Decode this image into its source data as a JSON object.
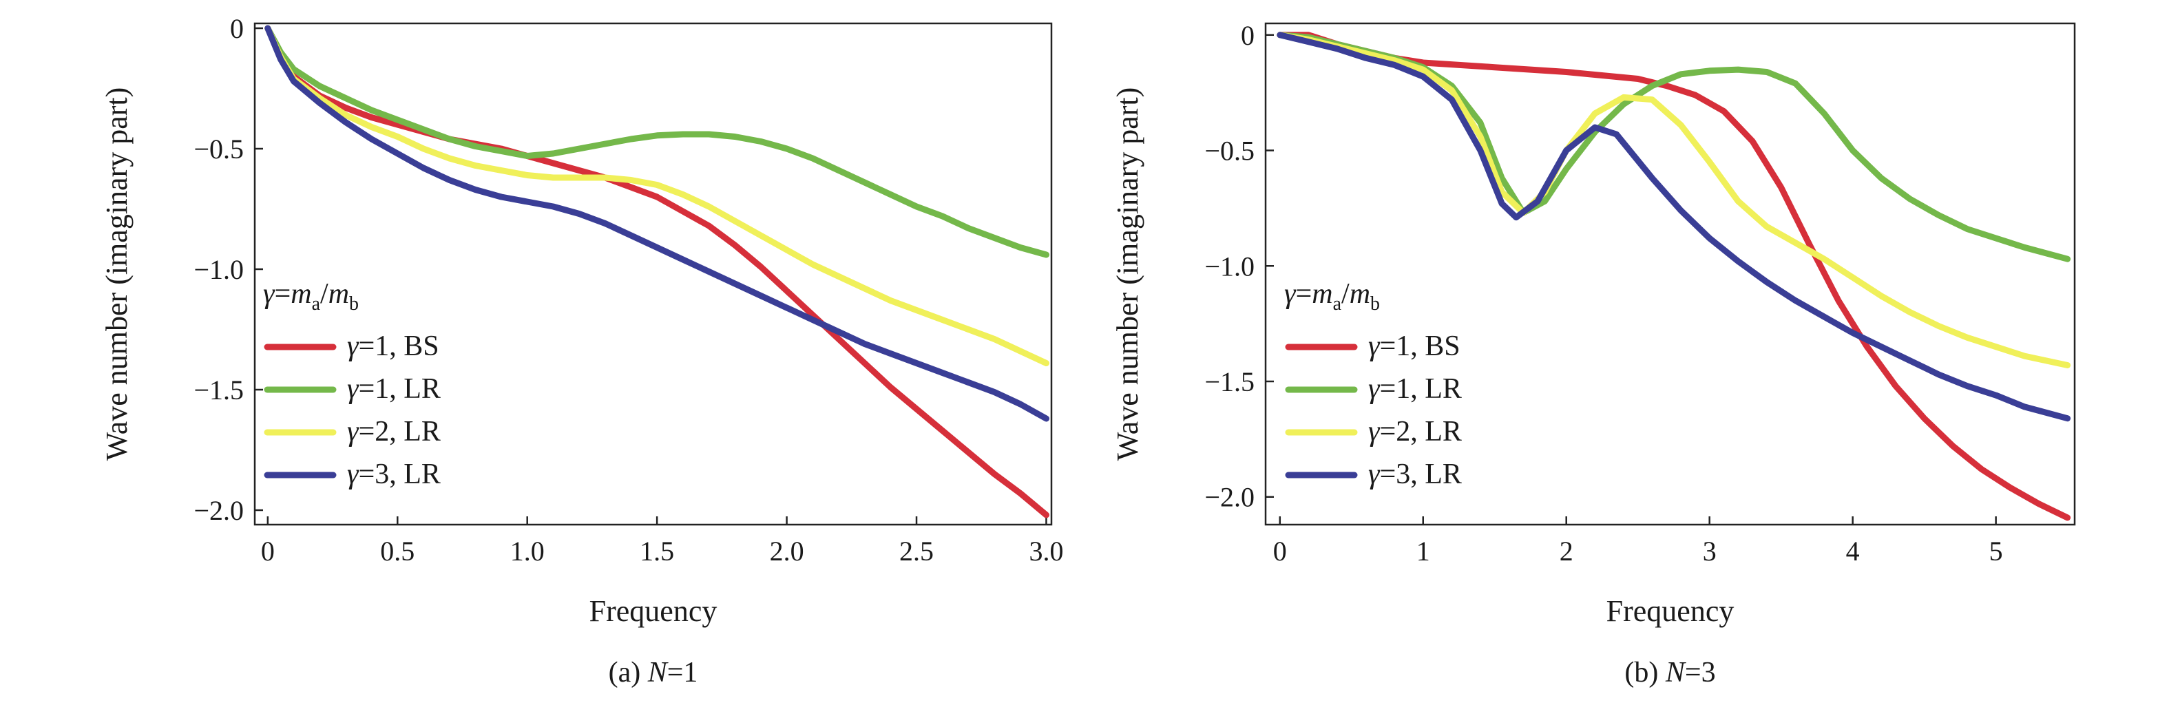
{
  "chart_data": [
    {
      "type": "line",
      "title": "",
      "caption": {
        "prefix": "(a) ",
        "var": "N",
        "rest": "=1"
      },
      "xlabel": "Frequency",
      "ylabel": "Wave number (imaginary part)",
      "xlim": [
        -0.05,
        3.02
      ],
      "ylim": [
        -2.06,
        0.02
      ],
      "xticks": [
        0,
        0.5,
        1.0,
        1.5,
        2.0,
        2.5,
        3.0
      ],
      "xtick_labels": [
        "0",
        "0.5",
        "1.0",
        "1.5",
        "2.0",
        "2.5",
        "3.0"
      ],
      "yticks": [
        0,
        -0.5,
        -1.0,
        -1.5,
        -2.0
      ],
      "ytick_labels": [
        "0",
        "−0.5",
        "−1.0",
        "−1.5",
        "−2.0"
      ],
      "grid": false,
      "legend": {
        "placement": "center-left",
        "title": {
          "g": "γ",
          "eq": "=",
          "m1": "m",
          "s1": "a",
          "slash": "/",
          "m2": "m",
          "s2": "b"
        },
        "entries": [
          {
            "g": "γ",
            "rest": "=1, BS"
          },
          {
            "g": "γ",
            "rest": "=1, LR"
          },
          {
            "g": "γ",
            "rest": "=2, LR"
          },
          {
            "g": "γ",
            "rest": "=3, LR"
          }
        ]
      },
      "series": [
        {
          "color": "#d62f3a",
          "points": [
            [
              0,
              0
            ],
            [
              0.05,
              -0.12
            ],
            [
              0.1,
              -0.2
            ],
            [
              0.2,
              -0.28
            ],
            [
              0.3,
              -0.33
            ],
            [
              0.4,
              -0.37
            ],
            [
              0.5,
              -0.4
            ],
            [
              0.6,
              -0.43
            ],
            [
              0.7,
              -0.46
            ],
            [
              0.8,
              -0.48
            ],
            [
              0.9,
              -0.5
            ],
            [
              1.0,
              -0.53
            ],
            [
              1.1,
              -0.56
            ],
            [
              1.2,
              -0.59
            ],
            [
              1.3,
              -0.62
            ],
            [
              1.4,
              -0.66
            ],
            [
              1.5,
              -0.7
            ],
            [
              1.6,
              -0.76
            ],
            [
              1.7,
              -0.82
            ],
            [
              1.8,
              -0.9
            ],
            [
              1.9,
              -0.99
            ],
            [
              2.0,
              -1.09
            ],
            [
              2.1,
              -1.19
            ],
            [
              2.2,
              -1.29
            ],
            [
              2.3,
              -1.39
            ],
            [
              2.4,
              -1.49
            ],
            [
              2.5,
              -1.58
            ],
            [
              2.6,
              -1.67
            ],
            [
              2.7,
              -1.76
            ],
            [
              2.8,
              -1.85
            ],
            [
              2.9,
              -1.93
            ],
            [
              3.0,
              -2.02
            ]
          ]
        },
        {
          "color": "#74b84a",
          "points": [
            [
              0,
              0
            ],
            [
              0.05,
              -0.1
            ],
            [
              0.1,
              -0.17
            ],
            [
              0.2,
              -0.24
            ],
            [
              0.3,
              -0.29
            ],
            [
              0.4,
              -0.34
            ],
            [
              0.5,
              -0.38
            ],
            [
              0.6,
              -0.42
            ],
            [
              0.7,
              -0.46
            ],
            [
              0.8,
              -0.49
            ],
            [
              0.9,
              -0.51
            ],
            [
              1.0,
              -0.53
            ],
            [
              1.1,
              -0.52
            ],
            [
              1.2,
              -0.5
            ],
            [
              1.3,
              -0.48
            ],
            [
              1.4,
              -0.46
            ],
            [
              1.5,
              -0.445
            ],
            [
              1.6,
              -0.44
            ],
            [
              1.7,
              -0.44
            ],
            [
              1.8,
              -0.45
            ],
            [
              1.9,
              -0.47
            ],
            [
              2.0,
              -0.5
            ],
            [
              2.1,
              -0.54
            ],
            [
              2.2,
              -0.59
            ],
            [
              2.3,
              -0.64
            ],
            [
              2.4,
              -0.69
            ],
            [
              2.5,
              -0.74
            ],
            [
              2.6,
              -0.78
            ],
            [
              2.7,
              -0.83
            ],
            [
              2.8,
              -0.87
            ],
            [
              2.9,
              -0.91
            ],
            [
              3.0,
              -0.94
            ]
          ]
        },
        {
          "color": "#f0f05a",
          "points": [
            [
              0,
              0
            ],
            [
              0.05,
              -0.12
            ],
            [
              0.1,
              -0.21
            ],
            [
              0.2,
              -0.29
            ],
            [
              0.3,
              -0.36
            ],
            [
              0.4,
              -0.41
            ],
            [
              0.5,
              -0.45
            ],
            [
              0.6,
              -0.5
            ],
            [
              0.7,
              -0.54
            ],
            [
              0.8,
              -0.57
            ],
            [
              0.9,
              -0.59
            ],
            [
              1.0,
              -0.61
            ],
            [
              1.1,
              -0.62
            ],
            [
              1.2,
              -0.62
            ],
            [
              1.3,
              -0.62
            ],
            [
              1.4,
              -0.63
            ],
            [
              1.5,
              -0.65
            ],
            [
              1.6,
              -0.69
            ],
            [
              1.7,
              -0.74
            ],
            [
              1.8,
              -0.8
            ],
            [
              1.9,
              -0.86
            ],
            [
              2.0,
              -0.92
            ],
            [
              2.1,
              -0.98
            ],
            [
              2.2,
              -1.03
            ],
            [
              2.3,
              -1.08
            ],
            [
              2.4,
              -1.13
            ],
            [
              2.5,
              -1.17
            ],
            [
              2.6,
              -1.21
            ],
            [
              2.7,
              -1.25
            ],
            [
              2.8,
              -1.29
            ],
            [
              2.9,
              -1.34
            ],
            [
              3.0,
              -1.39
            ]
          ]
        },
        {
          "color": "#3a3e96",
          "points": [
            [
              0,
              0
            ],
            [
              0.05,
              -0.13
            ],
            [
              0.1,
              -0.22
            ],
            [
              0.2,
              -0.31
            ],
            [
              0.3,
              -0.39
            ],
            [
              0.4,
              -0.46
            ],
            [
              0.5,
              -0.52
            ],
            [
              0.6,
              -0.58
            ],
            [
              0.7,
              -0.63
            ],
            [
              0.8,
              -0.67
            ],
            [
              0.9,
              -0.7
            ],
            [
              1.0,
              -0.72
            ],
            [
              1.1,
              -0.74
            ],
            [
              1.2,
              -0.77
            ],
            [
              1.3,
              -0.81
            ],
            [
              1.4,
              -0.86
            ],
            [
              1.5,
              -0.91
            ],
            [
              1.6,
              -0.96
            ],
            [
              1.7,
              -1.01
            ],
            [
              1.8,
              -1.06
            ],
            [
              1.9,
              -1.11
            ],
            [
              2.0,
              -1.16
            ],
            [
              2.1,
              -1.21
            ],
            [
              2.2,
              -1.26
            ],
            [
              2.3,
              -1.31
            ],
            [
              2.4,
              -1.35
            ],
            [
              2.5,
              -1.39
            ],
            [
              2.6,
              -1.43
            ],
            [
              2.7,
              -1.47
            ],
            [
              2.8,
              -1.51
            ],
            [
              2.9,
              -1.56
            ],
            [
              3.0,
              -1.62
            ]
          ]
        }
      ]
    },
    {
      "type": "line",
      "title": "",
      "caption": {
        "prefix": "(b) ",
        "var": "N",
        "rest": "=3"
      },
      "xlabel": "Frequency",
      "ylabel": "Wave number (imaginary part)",
      "xlim": [
        -0.1,
        5.55
      ],
      "ylim": [
        -2.12,
        0.05
      ],
      "xticks": [
        0,
        1,
        2,
        3,
        4,
        5
      ],
      "xtick_labels": [
        "0",
        "1",
        "2",
        "3",
        "4",
        "5"
      ],
      "yticks": [
        0,
        -0.5,
        -1.0,
        -1.5,
        -2.0
      ],
      "ytick_labels": [
        "0",
        "−0.5",
        "−1.0",
        "−1.5",
        "−2.0"
      ],
      "grid": false,
      "legend": {
        "placement": "center-left",
        "title": {
          "g": "γ",
          "eq": "=",
          "m1": "m",
          "s1": "a",
          "slash": "/",
          "m2": "m",
          "s2": "b"
        },
        "entries": [
          {
            "g": "γ",
            "rest": "=1, BS"
          },
          {
            "g": "γ",
            "rest": "=1, LR"
          },
          {
            "g": "γ",
            "rest": "=2, LR"
          },
          {
            "g": "γ",
            "rest": "=3, LR"
          }
        ]
      },
      "series": [
        {
          "color": "#d62f3a",
          "points": [
            [
              0,
              0
            ],
            [
              0.2,
              0
            ],
            [
              0.4,
              -0.04
            ],
            [
              0.6,
              -0.07
            ],
            [
              0.8,
              -0.1
            ],
            [
              1.0,
              -0.12
            ],
            [
              1.5,
              -0.14
            ],
            [
              2.0,
              -0.16
            ],
            [
              2.5,
              -0.19
            ],
            [
              2.7,
              -0.22
            ],
            [
              2.9,
              -0.26
            ],
            [
              3.1,
              -0.33
            ],
            [
              3.3,
              -0.46
            ],
            [
              3.5,
              -0.66
            ],
            [
              3.7,
              -0.91
            ],
            [
              3.9,
              -1.15
            ],
            [
              4.1,
              -1.35
            ],
            [
              4.3,
              -1.52
            ],
            [
              4.5,
              -1.66
            ],
            [
              4.7,
              -1.78
            ],
            [
              4.9,
              -1.88
            ],
            [
              5.1,
              -1.96
            ],
            [
              5.3,
              -2.03
            ],
            [
              5.5,
              -2.09
            ]
          ]
        },
        {
          "color": "#74b84a",
          "points": [
            [
              0,
              0
            ],
            [
              0.2,
              -0.01
            ],
            [
              0.4,
              -0.04
            ],
            [
              0.6,
              -0.07
            ],
            [
              0.8,
              -0.1
            ],
            [
              1.0,
              -0.14
            ],
            [
              1.2,
              -0.22
            ],
            [
              1.4,
              -0.38
            ],
            [
              1.55,
              -0.62
            ],
            [
              1.7,
              -0.77
            ],
            [
              1.85,
              -0.72
            ],
            [
              2.0,
              -0.58
            ],
            [
              2.2,
              -0.42
            ],
            [
              2.4,
              -0.3
            ],
            [
              2.6,
              -0.22
            ],
            [
              2.8,
              -0.17
            ],
            [
              3.0,
              -0.155
            ],
            [
              3.2,
              -0.15
            ],
            [
              3.4,
              -0.16
            ],
            [
              3.6,
              -0.21
            ],
            [
              3.8,
              -0.34
            ],
            [
              4.0,
              -0.5
            ],
            [
              4.2,
              -0.62
            ],
            [
              4.4,
              -0.71
            ],
            [
              4.6,
              -0.78
            ],
            [
              4.8,
              -0.84
            ],
            [
              5.0,
              -0.88
            ],
            [
              5.2,
              -0.92
            ],
            [
              5.5,
              -0.97
            ]
          ]
        },
        {
          "color": "#f0f05a",
          "points": [
            [
              0,
              0
            ],
            [
              0.2,
              -0.02
            ],
            [
              0.4,
              -0.05
            ],
            [
              0.6,
              -0.08
            ],
            [
              0.8,
              -0.11
            ],
            [
              1.0,
              -0.15
            ],
            [
              1.2,
              -0.24
            ],
            [
              1.4,
              -0.44
            ],
            [
              1.55,
              -0.68
            ],
            [
              1.7,
              -0.77
            ],
            [
              1.85,
              -0.68
            ],
            [
              2.0,
              -0.5
            ],
            [
              2.2,
              -0.34
            ],
            [
              2.4,
              -0.27
            ],
            [
              2.6,
              -0.28
            ],
            [
              2.8,
              -0.39
            ],
            [
              3.0,
              -0.55
            ],
            [
              3.2,
              -0.72
            ],
            [
              3.4,
              -0.83
            ],
            [
              3.6,
              -0.9
            ],
            [
              3.8,
              -0.97
            ],
            [
              4.0,
              -1.05
            ],
            [
              4.2,
              -1.13
            ],
            [
              4.4,
              -1.2
            ],
            [
              4.6,
              -1.26
            ],
            [
              4.8,
              -1.31
            ],
            [
              5.0,
              -1.35
            ],
            [
              5.2,
              -1.39
            ],
            [
              5.5,
              -1.43
            ]
          ]
        },
        {
          "color": "#3a3e96",
          "points": [
            [
              0,
              0
            ],
            [
              0.2,
              -0.03
            ],
            [
              0.4,
              -0.06
            ],
            [
              0.6,
              -0.1
            ],
            [
              0.8,
              -0.13
            ],
            [
              1.0,
              -0.18
            ],
            [
              1.2,
              -0.28
            ],
            [
              1.4,
              -0.5
            ],
            [
              1.55,
              -0.73
            ],
            [
              1.65,
              -0.79
            ],
            [
              1.8,
              -0.72
            ],
            [
              2.0,
              -0.5
            ],
            [
              2.2,
              -0.4
            ],
            [
              2.35,
              -0.43
            ],
            [
              2.6,
              -0.62
            ],
            [
              2.8,
              -0.76
            ],
            [
              3.0,
              -0.88
            ],
            [
              3.2,
              -0.98
            ],
            [
              3.4,
              -1.07
            ],
            [
              3.6,
              -1.15
            ],
            [
              3.8,
              -1.22
            ],
            [
              4.0,
              -1.29
            ],
            [
              4.2,
              -1.35
            ],
            [
              4.4,
              -1.41
            ],
            [
              4.6,
              -1.47
            ],
            [
              4.8,
              -1.52
            ],
            [
              5.0,
              -1.56
            ],
            [
              5.2,
              -1.61
            ],
            [
              5.5,
              -1.66
            ]
          ]
        }
      ]
    }
  ]
}
